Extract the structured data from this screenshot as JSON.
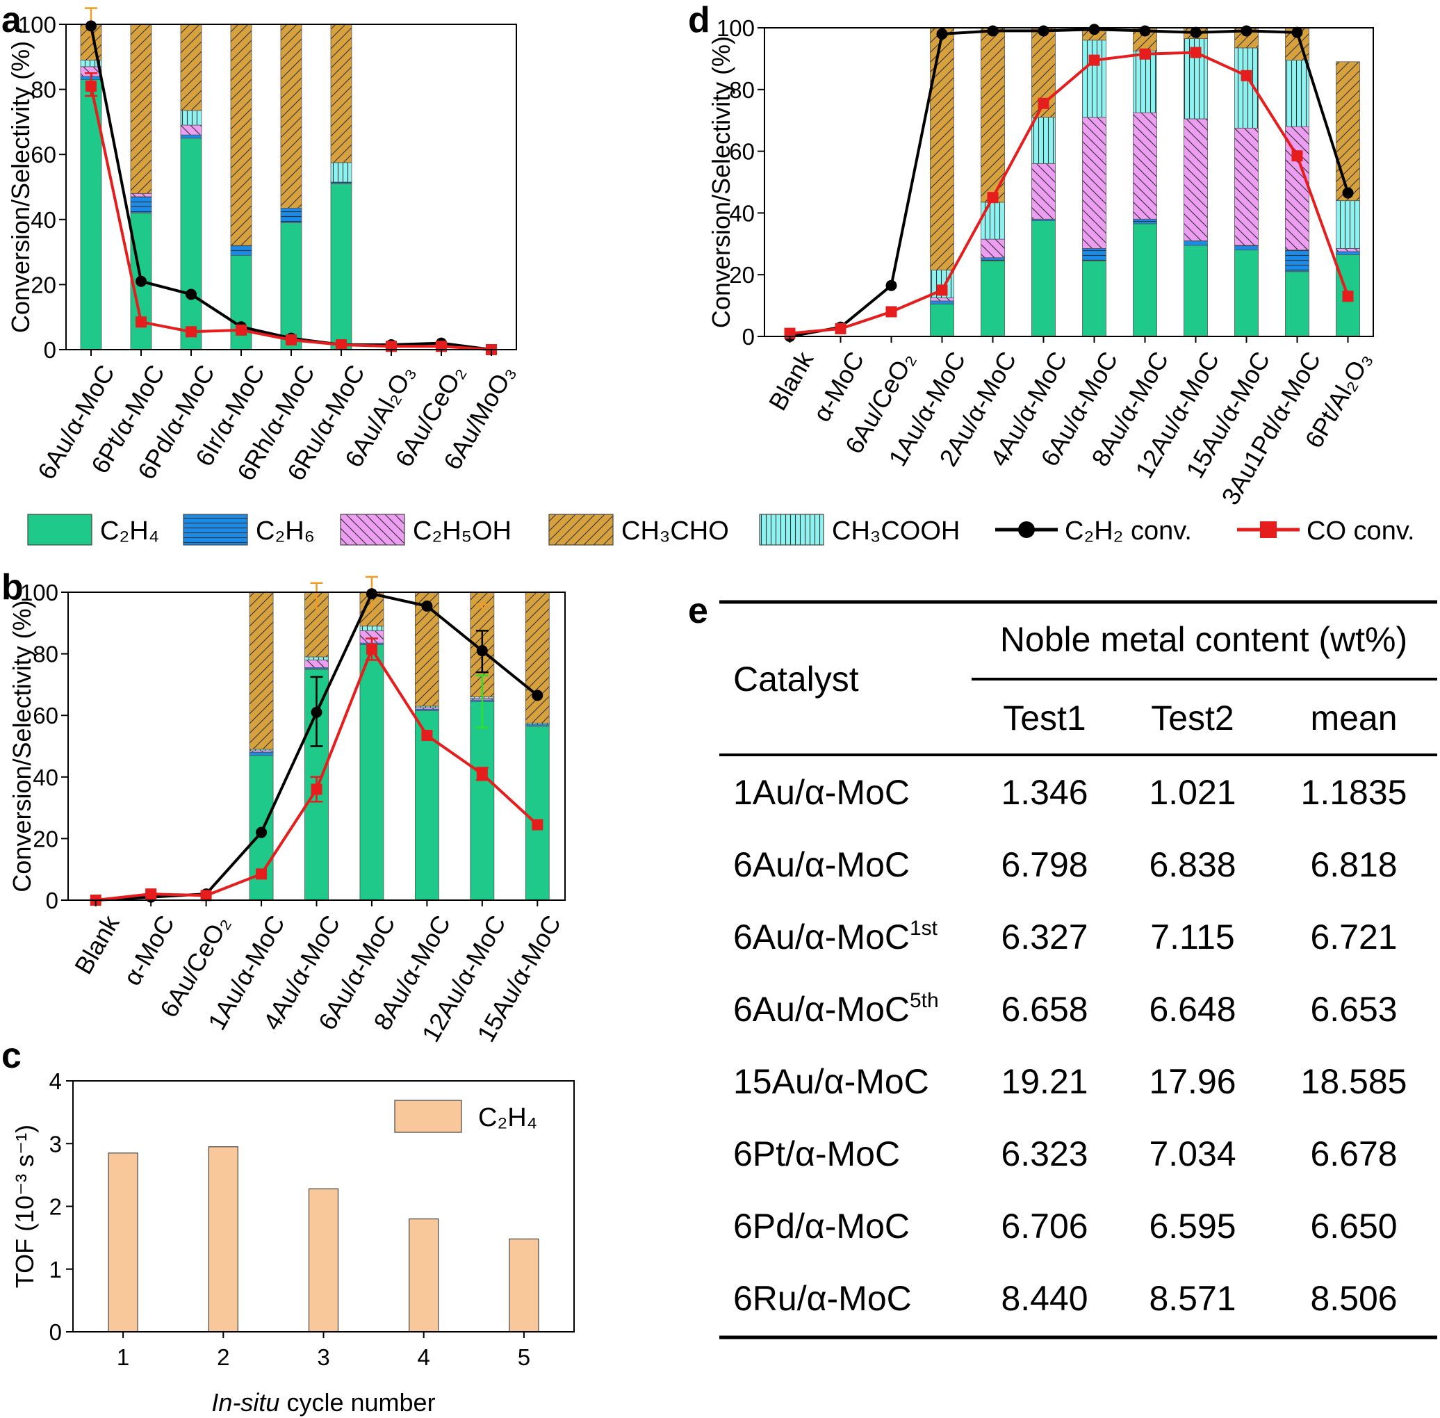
{
  "panels": {
    "a": "a",
    "b": "b",
    "c": "c",
    "d": "d",
    "e": "e"
  },
  "colors": {
    "c2h4": "#1fc98a",
    "c2h6": "#1a8be8",
    "c2h5oh": "#ee9ef2",
    "ch3cho": "#d7a23e",
    "ch3cooh": "#8cf3f1",
    "c2h2": "#000000",
    "co": "#e51d1d",
    "tof": "#f8c79a",
    "err_orange": "#f39a24",
    "err_green": "#2ee02e"
  },
  "legend": {
    "items": [
      {
        "key": "c2h4",
        "label": "C₂H₄"
      },
      {
        "key": "c2h6",
        "label": "C₂H₆"
      },
      {
        "key": "c2h5oh",
        "label": "C₂H₅OH"
      },
      {
        "key": "ch3cho",
        "label": "CH₃CHO"
      },
      {
        "key": "ch3cooh",
        "label": "CH₃COOH"
      },
      {
        "key": "c2h2",
        "label": "C₂H₂  conv."
      },
      {
        "key": "co",
        "label": "CO conv."
      }
    ]
  },
  "chart_data": [
    {
      "id": "a",
      "type": "bar",
      "stacked": true,
      "ylabel": "Conversion/Selectivity (%)",
      "ylim": [
        0,
        100
      ],
      "yticks": [
        0,
        20,
        40,
        60,
        80,
        100
      ],
      "categories": [
        "6Au/α-MoC",
        "6Pt/α-MoC",
        "6Pd/α-MoC",
        "6Ir/α-MoC",
        "6Rh/α-MoC",
        "6Ru/α-MoC",
        "6Au/Al₂O₃",
        "6Au/CeO₂",
        "6Au/MoO₃"
      ],
      "series": [
        {
          "name": "C2H4",
          "key": "c2h4",
          "values": [
            83,
            42,
            65,
            29,
            39,
            51,
            0,
            0,
            0
          ]
        },
        {
          "name": "C2H6",
          "key": "c2h6",
          "values": [
            1,
            5,
            1,
            3,
            4.5,
            0.5,
            0,
            0,
            0
          ]
        },
        {
          "name": "C2H5OH",
          "key": "c2h5oh",
          "values": [
            3,
            1,
            3,
            0,
            0,
            0,
            0,
            0,
            0
          ]
        },
        {
          "name": "CH3COOH",
          "key": "ch3cooh",
          "values": [
            2,
            0,
            4.5,
            0,
            0,
            6,
            0,
            0,
            0
          ]
        },
        {
          "name": "CH3CHO",
          "key": "ch3cho",
          "values": [
            11,
            52,
            26.5,
            68,
            56.5,
            42.5,
            0,
            0,
            0
          ]
        }
      ],
      "lines": [
        {
          "name": "C2H2 conv.",
          "key": "c2h2",
          "values": [
            99.5,
            21,
            17,
            7,
            3.5,
            1.5,
            1.5,
            2,
            0
          ]
        },
        {
          "name": "CO conv.",
          "key": "co",
          "values": [
            81,
            8.5,
            5.5,
            6,
            3,
            1.5,
            1,
            1,
            0
          ]
        }
      ],
      "error_bars": [
        {
          "index": 0,
          "top": 105,
          "color": "err_orange"
        },
        {
          "index": 0,
          "line": "co",
          "low": 78,
          "high": 85,
          "color": "co"
        }
      ]
    },
    {
      "id": "b",
      "type": "bar",
      "stacked": true,
      "ylabel": "Conversion/Selectivity (%)",
      "ylim": [
        0,
        100
      ],
      "yticks": [
        0,
        20,
        40,
        60,
        80,
        100
      ],
      "categories": [
        "Blank",
        "α-MoC",
        "6Au/CeO₂",
        "1Au/α-MoC",
        "4Au/α-MoC",
        "6Au/α-MoC",
        "8Au/α-MoC",
        "12Au/α-MoC",
        "15Au/α-MoC"
      ],
      "series": [
        {
          "name": "C2H4",
          "key": "c2h4",
          "values": [
            0,
            0,
            0,
            47,
            75,
            83,
            61.5,
            64.5,
            56.5
          ]
        },
        {
          "name": "C2H6",
          "key": "c2h6",
          "values": [
            0,
            0,
            0,
            1,
            0.5,
            0.5,
            0.5,
            0.5,
            0.5
          ]
        },
        {
          "name": "C2H5OH",
          "key": "c2h5oh",
          "values": [
            0,
            0,
            0,
            0.5,
            2.5,
            4,
            0.5,
            0.5,
            0
          ]
        },
        {
          "name": "CH3COOH",
          "key": "ch3cooh",
          "values": [
            0,
            0,
            0,
            0.5,
            1,
            1.5,
            0.5,
            0.5,
            0.5
          ]
        },
        {
          "name": "CH3CHO",
          "key": "ch3cho",
          "values": [
            0,
            0,
            0,
            51,
            21,
            11,
            37,
            34,
            42.5
          ]
        }
      ],
      "lines": [
        {
          "name": "C2H2 conv.",
          "key": "c2h2",
          "values": [
            0,
            1,
            2,
            22,
            61,
            99.5,
            95.5,
            81,
            66.5
          ]
        },
        {
          "name": "CO conv.",
          "key": "co",
          "values": [
            0,
            2,
            1.5,
            8.5,
            36,
            81.5,
            53.5,
            41,
            24.5
          ]
        }
      ],
      "error_bars": [
        {
          "index": 4,
          "top": 103,
          "color": "err_orange"
        },
        {
          "index": 5,
          "top": 105,
          "color": "err_orange"
        },
        {
          "index": 7,
          "top": 96,
          "color": "err_orange"
        },
        {
          "index": 7,
          "line": "c2h4_bar",
          "low": 56,
          "high": 73,
          "color": "err_green"
        },
        {
          "index": 4,
          "line": "c2h2",
          "low": 50,
          "high": 72.5,
          "color": "c2h2"
        },
        {
          "index": 7,
          "line": "c2h2",
          "low": 74,
          "high": 87.5,
          "color": "c2h2"
        },
        {
          "index": 4,
          "line": "co",
          "low": 32,
          "high": 40,
          "color": "co"
        },
        {
          "index": 5,
          "line": "co",
          "low": 78,
          "high": 85,
          "color": "co"
        },
        {
          "index": 7,
          "line": "co",
          "low": 39,
          "high": 43,
          "color": "co"
        }
      ]
    },
    {
      "id": "c",
      "type": "bar",
      "xlabel_italic": "In-situ",
      "xlabel_rest": " cycle number",
      "ylabel": "TOF (10⁻³ s⁻¹)",
      "ylim": [
        0,
        4
      ],
      "yticks": [
        0,
        1,
        2,
        3,
        4
      ],
      "categories": [
        "1",
        "2",
        "3",
        "4",
        "5"
      ],
      "values": [
        2.85,
        2.95,
        2.28,
        1.8,
        1.48
      ],
      "legend": "C₂H₄"
    },
    {
      "id": "d",
      "type": "bar",
      "stacked": true,
      "ylabel": "Conversion/Selectivity (%)",
      "ylim": [
        0,
        100
      ],
      "yticks": [
        0,
        20,
        40,
        60,
        80,
        100
      ],
      "categories": [
        "Blank",
        "α-MoC",
        "6Au/CeO₂",
        "1Au/α-MoC",
        "2Au/α-MoC",
        "4Au/α-MoC",
        "6Au/α-MoC",
        "8Au/α-MoC",
        "12Au/α-MoC",
        "15Au/α-MoC",
        "3Au1Pd/α-MoC",
        "6Pt/Al₂O₃"
      ],
      "series": [
        {
          "name": "C2H4",
          "key": "c2h4",
          "values": [
            0,
            0,
            0,
            10.5,
            24.5,
            37.5,
            24.5,
            36.5,
            29.5,
            28,
            21,
            26.5
          ]
        },
        {
          "name": "C2H6",
          "key": "c2h6",
          "values": [
            0,
            0,
            0,
            1,
            1,
            0.5,
            4,
            1.5,
            1.5,
            1.5,
            7,
            1
          ]
        },
        {
          "name": "C2H5OH",
          "key": "c2h5oh",
          "values": [
            0,
            0,
            0,
            1,
            6,
            18,
            42.5,
            34.5,
            39.5,
            38,
            40,
            1
          ]
        },
        {
          "name": "CH3COOH",
          "key": "ch3cooh",
          "values": [
            0,
            0,
            0,
            9,
            12,
            15,
            25,
            20,
            26,
            26,
            21.5,
            15.5
          ]
        },
        {
          "name": "CH3CHO",
          "key": "ch3cho",
          "values": [
            0,
            0,
            0,
            78.5,
            56.5,
            29,
            4,
            7.5,
            3.5,
            6.5,
            10.5,
            45
          ]
        }
      ],
      "lines": [
        {
          "name": "C2H2 conv.",
          "key": "c2h2",
          "values": [
            0,
            3,
            16.5,
            98,
            99,
            99,
            99.5,
            99,
            98.5,
            99,
            98.5,
            46.5
          ]
        },
        {
          "name": "CO conv.",
          "key": "co",
          "values": [
            1,
            2.5,
            8,
            15,
            45,
            75.5,
            89.5,
            91.5,
            92,
            84.5,
            58.5,
            13
          ]
        }
      ]
    },
    {
      "id": "e",
      "type": "table",
      "columns": {
        "catalyst": "Catalyst",
        "group": "Noble metal content (wt%)",
        "test1": "Test1",
        "test2": "Test2",
        "mean": "mean"
      },
      "rows": [
        {
          "catalyst": "1Au/α-MoC",
          "sup": "",
          "test1": "1.346",
          "test2": "1.021",
          "mean": "1.1835"
        },
        {
          "catalyst": "6Au/α-MoC",
          "sup": "",
          "test1": "6.798",
          "test2": "6.838",
          "mean": "6.818"
        },
        {
          "catalyst": "6Au/α-MoC",
          "sup": "1st",
          "test1": "6.327",
          "test2": "7.115",
          "mean": "6.721"
        },
        {
          "catalyst": "6Au/α-MoC",
          "sup": "5th",
          "test1": "6.658",
          "test2": "6.648",
          "mean": "6.653"
        },
        {
          "catalyst": "15Au/α-MoC",
          "sup": "",
          "test1": "19.21",
          "test2": "17.96",
          "mean": "18.585"
        },
        {
          "catalyst": "6Pt/α-MoC",
          "sup": "",
          "test1": "6.323",
          "test2": "7.034",
          "mean": "6.678"
        },
        {
          "catalyst": "6Pd/α-MoC",
          "sup": "",
          "test1": "6.706",
          "test2": "6.595",
          "mean": "6.650"
        },
        {
          "catalyst": "6Ru/α-MoC",
          "sup": "",
          "test1": "8.440",
          "test2": "8.571",
          "mean": "8.506"
        }
      ]
    }
  ]
}
